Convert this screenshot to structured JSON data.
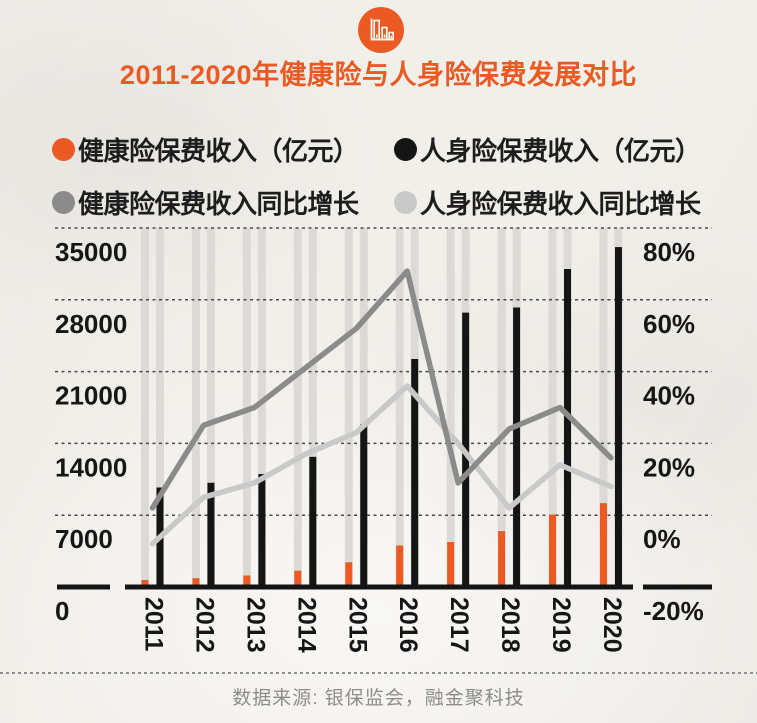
{
  "page": {
    "background": "#f1efea",
    "accent": "#ea5a22"
  },
  "header": {
    "icon": "bar-chart-icon",
    "title": "2011-2020年健康险与人身险保费发展对比"
  },
  "legend": {
    "items": [
      {
        "label": "健康险保费收入（亿元）",
        "color": "#ea5a22"
      },
      {
        "label": "人身险保费收入（亿元）",
        "color": "#151515"
      },
      {
        "label": "健康险保费收入同比增长",
        "color": "#8b8b8b"
      },
      {
        "label": "人身险保费收入同比增长",
        "color": "#c9c9c9"
      }
    ]
  },
  "chart_data": {
    "type": "bar",
    "title": "2011-2020年健康险与人身险保费发展对比",
    "categories": [
      "2011",
      "2012",
      "2013",
      "2014",
      "2015",
      "2016",
      "2017",
      "2018",
      "2019",
      "2020"
    ],
    "series": [
      {
        "name": "健康险保费收入（亿元）",
        "kind": "bar",
        "axis": "left",
        "color": "#ea5a22",
        "values": [
          692,
          863,
          1123,
          1587,
          2410,
          4042,
          4389,
          5448,
          7066,
          8173
        ]
      },
      {
        "name": "人身险保费收入（亿元）",
        "kind": "bar",
        "axis": "left",
        "color": "#151515",
        "values": [
          9700,
          10160,
          11010,
          12690,
          15860,
          22230,
          26750,
          27250,
          31000,
          33140
        ]
      },
      {
        "name": "健康险保费收入同比增长",
        "kind": "line",
        "axis": "right",
        "color": "#8b8b8b",
        "unit": "%",
        "values": [
          2,
          25,
          30,
          41,
          52,
          68,
          9,
          24,
          30,
          16
        ]
      },
      {
        "name": "人身险保费收入同比增长",
        "kind": "line",
        "axis": "right",
        "color": "#c9c9c9",
        "unit": "%",
        "values": [
          -8,
          5,
          9,
          17,
          23,
          36,
          20,
          2,
          14,
          8
        ]
      }
    ],
    "left_axis": {
      "min": 0,
      "max": 35000,
      "ticks": [
        0,
        7000,
        14000,
        21000,
        28000,
        35000
      ]
    },
    "right_axis": {
      "min": -20,
      "max": 80,
      "ticks": [
        -20,
        0,
        20,
        40,
        60,
        80
      ],
      "tick_format": "percent"
    },
    "grid": "horizontal-dashed",
    "legend_position": "top"
  },
  "footer": {
    "source": "数据来源: 银保监会，融金聚科技"
  }
}
